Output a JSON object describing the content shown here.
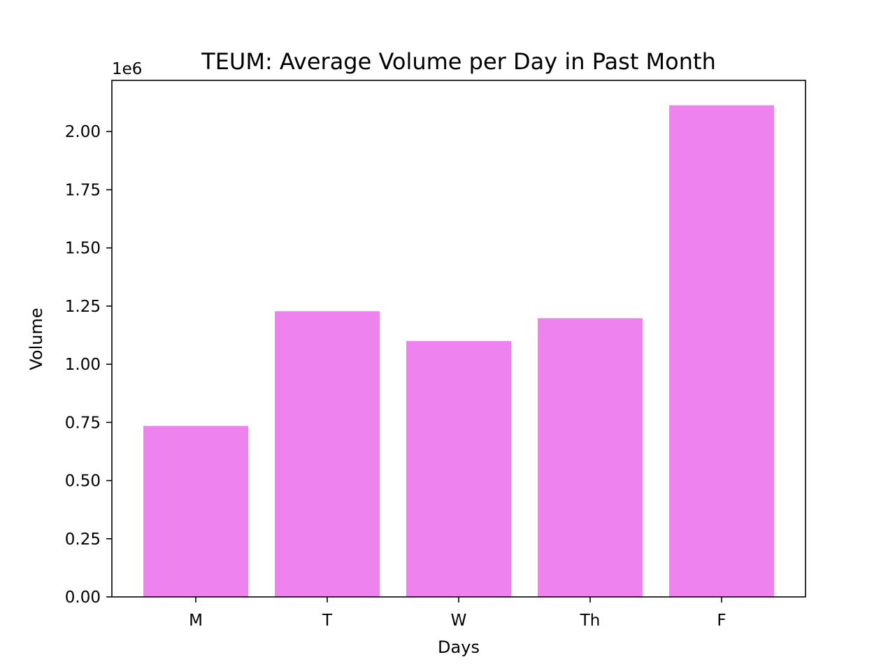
{
  "chart_data": {
    "type": "bar",
    "title": "TEUM: Average Volume per Day in Past Month",
    "xlabel": "Days",
    "ylabel": "Volume",
    "y_offset_label": "1e6",
    "categories": [
      "M",
      "T",
      "W",
      "Th",
      "F"
    ],
    "values": [
      735000,
      1228000,
      1100000,
      1198000,
      2113000
    ],
    "ylim": [
      0,
      2220000
    ],
    "yticks": [
      0,
      250000,
      500000,
      750000,
      1000000,
      1250000,
      1500000,
      1750000,
      2000000
    ],
    "ytick_labels": [
      "0.00",
      "0.25",
      "0.50",
      "0.75",
      "1.00",
      "1.25",
      "1.50",
      "1.75",
      "2.00"
    ],
    "bar_color": "#ee82ee",
    "grid": false,
    "legend": "none"
  }
}
